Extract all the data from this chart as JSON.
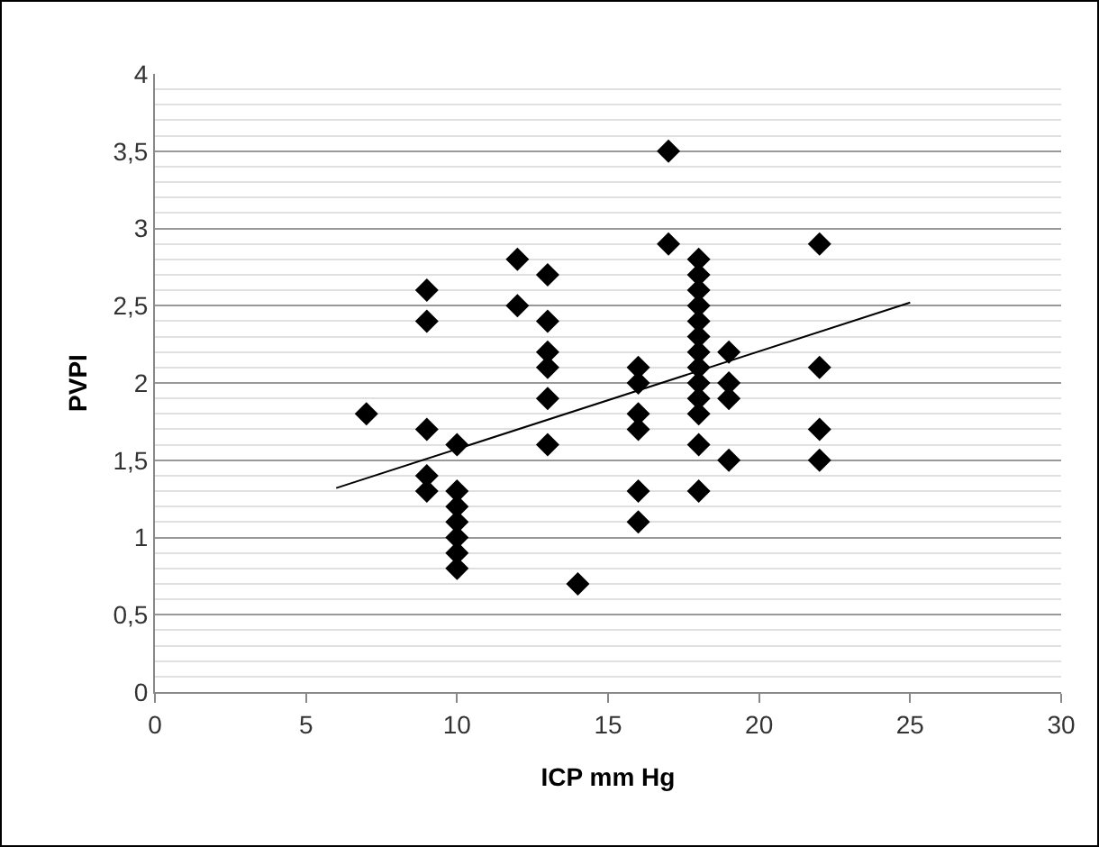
{
  "chart_data": {
    "type": "scatter",
    "xlabel": "ICP mm Hg",
    "ylabel": "PVPI",
    "grid": "y",
    "legend": false,
    "series": [
      {
        "marker": "diamond",
        "color": "#000000",
        "x": [
          7,
          9,
          9,
          9,
          9,
          9,
          10,
          10,
          10,
          10,
          10,
          10,
          10,
          12,
          12,
          13,
          13,
          13,
          13,
          13,
          13,
          14,
          16,
          16,
          16,
          16,
          16,
          16,
          17,
          17,
          18,
          18,
          18,
          18,
          18,
          18,
          18,
          18,
          18,
          18,
          18,
          18,
          18,
          19,
          19,
          19,
          19,
          22,
          22,
          22,
          22
        ],
        "values": [
          1.8,
          2.6,
          2.4,
          1.7,
          1.4,
          1.3,
          1.6,
          1.3,
          1.2,
          1.1,
          1.0,
          0.9,
          0.8,
          2.8,
          2.5,
          2.7,
          2.4,
          2.2,
          2.1,
          1.9,
          1.6,
          0.7,
          2.1,
          2.0,
          1.8,
          1.7,
          1.3,
          1.1,
          3.5,
          2.9,
          2.8,
          2.7,
          2.6,
          2.5,
          2.4,
          2.3,
          2.2,
          2.1,
          2.0,
          1.9,
          1.8,
          1.6,
          1.3,
          2.2,
          2.0,
          1.9,
          1.5,
          2.9,
          2.1,
          1.7,
          1.5
        ]
      },
      {
        "type": "line",
        "marker": "none",
        "color": "#000000",
        "x": [
          6,
          25
        ],
        "values": [
          1.32,
          2.52
        ]
      }
    ],
    "xlim": [
      0,
      30
    ],
    "xticks": [
      0,
      5,
      10,
      15,
      20,
      25,
      30
    ],
    "ylim": [
      0,
      4
    ],
    "yticks": [
      0,
      {
        "value": 0.5,
        "label": "0,5"
      },
      1,
      {
        "value": 1.5,
        "label": "1,5"
      },
      2,
      {
        "value": 2.5,
        "label": "2,5"
      },
      3,
      {
        "value": 3.5,
        "label": "3,5"
      },
      4
    ]
  }
}
